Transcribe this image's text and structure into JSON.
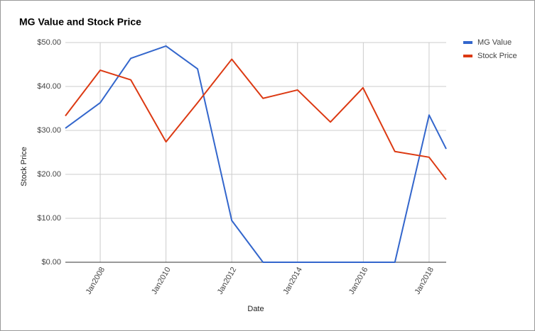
{
  "chart_data": {
    "type": "line",
    "title": "MG Value and Stock Price",
    "x_label": "Date",
    "y_label": "Stock Price",
    "x": [
      2006.94,
      2008.0,
      2008.93,
      2010.0,
      2010.96,
      2012.0,
      2012.95,
      2014.0,
      2015.0,
      2015.99,
      2016.96,
      2018.0,
      2018.52
    ],
    "series": [
      {
        "name": "MG Value",
        "color": "#3366cc",
        "values": [
          30.5,
          36.3,
          46.4,
          49.2,
          44.0,
          9.5,
          0,
          0,
          0,
          0,
          0,
          33.5,
          25.8
        ]
      },
      {
        "name": "Stock Price",
        "color": "#dc3912",
        "values": [
          33.3,
          43.7,
          41.5,
          27.4,
          36.3,
          46.2,
          37.3,
          39.2,
          31.9,
          39.7,
          25.2,
          23.9,
          18.8
        ]
      }
    ],
    "xlim": [
      2006.94,
      2018.52
    ],
    "xticks": [
      {
        "value": 2008,
        "label": "Jan2008"
      },
      {
        "value": 2010,
        "label": "Jan2010"
      },
      {
        "value": 2012,
        "label": "Jan2012"
      },
      {
        "value": 2014,
        "label": "Jan2014"
      },
      {
        "value": 2016,
        "label": "Jan2016"
      },
      {
        "value": 2018,
        "label": "Jan2018"
      }
    ],
    "ylim": [
      0,
      50
    ],
    "yticks": [
      {
        "value": 0,
        "label": "$0.00"
      },
      {
        "value": 10,
        "label": "$10.00"
      },
      {
        "value": 20,
        "label": "$20.00"
      },
      {
        "value": 30,
        "label": "$30.00"
      },
      {
        "value": 40,
        "label": "$40.00"
      },
      {
        "value": 50,
        "label": "$50.00"
      }
    ],
    "grid": true,
    "legend": "right"
  }
}
